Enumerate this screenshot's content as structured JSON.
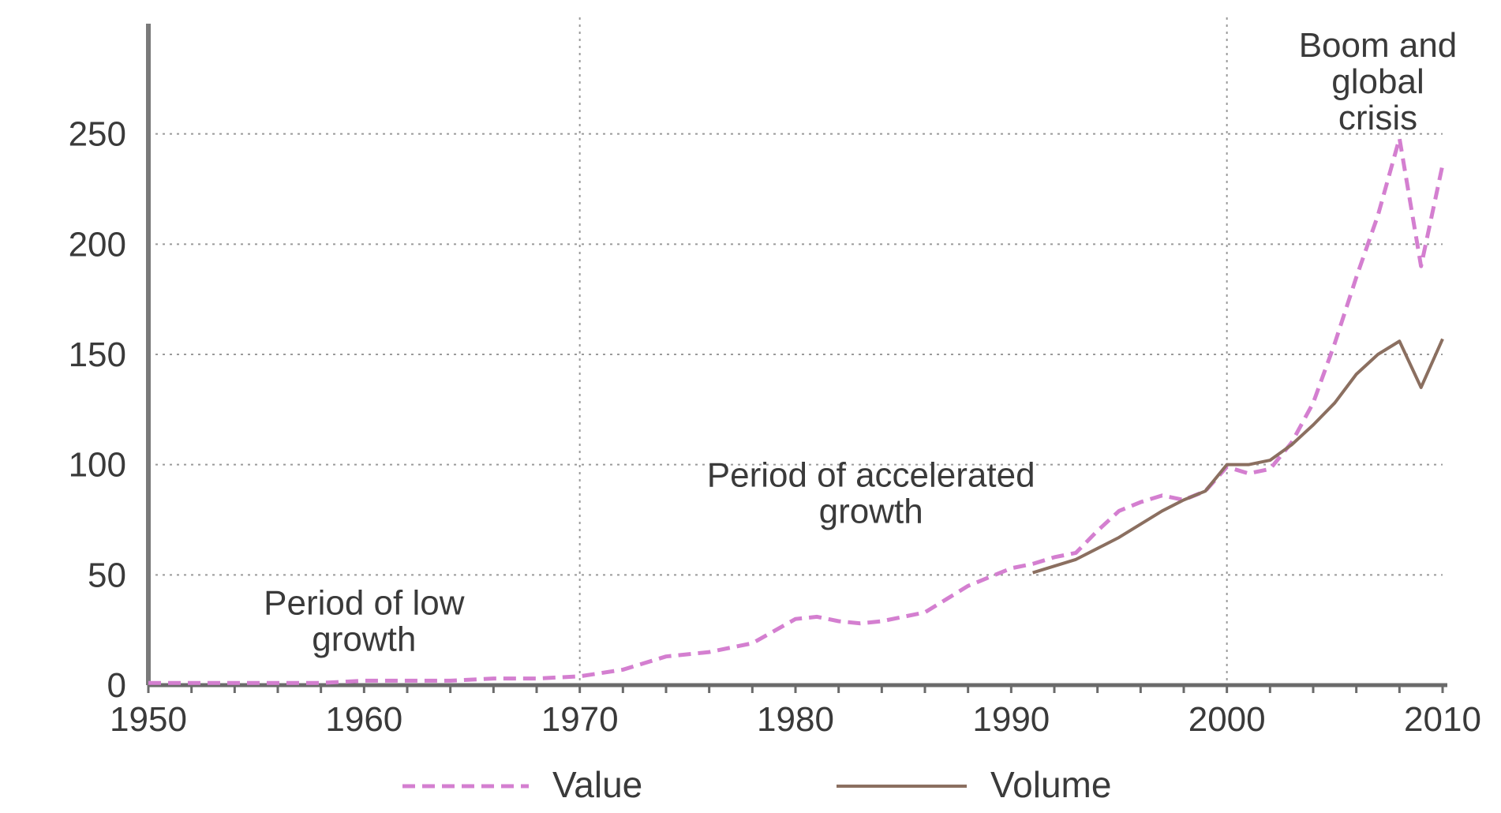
{
  "chart_data": {
    "type": "line",
    "xlim": [
      1950,
      2010
    ],
    "ylim": [
      0,
      300
    ],
    "x_ticks": [
      "1950",
      "1960",
      "1970",
      "1980",
      "1990",
      "2000",
      "2010"
    ],
    "y_ticks": [
      "0",
      "50",
      "100",
      "150",
      "200",
      "250"
    ],
    "grid": "dotted horizontal and vertical",
    "legend_position": "bottom",
    "annotations": [
      {
        "lines": [
          "Period of low",
          "growth"
        ],
        "x": 1960,
        "y": 32
      },
      {
        "lines": [
          "Period of accelerated",
          "growth"
        ],
        "x": 1983.5,
        "y": 90
      },
      {
        "lines": [
          "Boom and",
          "global",
          "crisis"
        ],
        "x": 2007,
        "y": 285
      }
    ],
    "series": [
      {
        "name": "Value",
        "style": "dashed",
        "color": "#d47fd0",
        "x": [
          1950,
          1952,
          1954,
          1956,
          1958,
          1960,
          1962,
          1964,
          1966,
          1968,
          1970,
          1972,
          1974,
          1976,
          1978,
          1980,
          1981,
          1982,
          1983,
          1984,
          1985,
          1986,
          1987,
          1988,
          1989,
          1990,
          1991,
          1992,
          1993,
          1994,
          1995,
          1996,
          1997,
          1998,
          1999,
          2000,
          2001,
          2002,
          2003,
          2004,
          2005,
          2006,
          2007,
          2008,
          2009,
          2010
        ],
        "y": [
          1,
          1,
          1,
          1,
          1,
          2,
          2,
          2,
          3,
          3,
          4,
          7,
          13,
          15,
          19,
          30,
          31,
          29,
          28,
          29,
          31,
          33,
          39,
          45,
          49,
          53,
          55,
          58,
          60,
          70,
          79,
          83,
          86,
          84,
          88,
          99,
          96,
          98,
          110,
          128,
          155,
          185,
          213,
          248,
          190,
          236
        ]
      },
      {
        "name": "Volume",
        "style": "solid",
        "color": "#8b6f60",
        "x": [
          1991,
          1992,
          1993,
          1994,
          1995,
          1996,
          1997,
          1998,
          1999,
          2000,
          2001,
          2002,
          2003,
          2004,
          2005,
          2006,
          2007,
          2008,
          2009,
          2010
        ],
        "y": [
          51,
          54,
          57,
          62,
          67,
          73,
          79,
          84,
          88,
          100,
          100,
          102,
          109,
          118,
          128,
          141,
          150,
          156,
          135,
          157
        ]
      }
    ]
  }
}
